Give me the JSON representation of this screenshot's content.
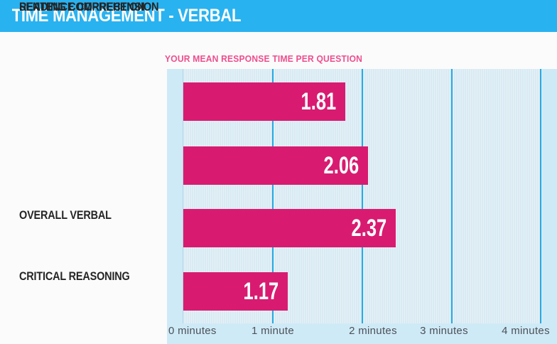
{
  "header": {
    "title": "TIME MANAGEMENT - VERBAL"
  },
  "chart_data": {
    "type": "bar",
    "orientation": "horizontal",
    "title": "YOUR MEAN RESPONSE TIME PER QUESTION",
    "categories": [
      "OVERALL VERBAL",
      "CRITICAL REASONING",
      "READING COMPREHENSION",
      "SENTENCE CORRECTION"
    ],
    "values": [
      1.81,
      2.06,
      2.37,
      1.17
    ],
    "value_unit": "minutes",
    "xlim": [
      0,
      4
    ],
    "tick_labels": [
      "0 minutes",
      "1 minute",
      "2 minutes",
      "3 minutes",
      "4 minutes"
    ],
    "grid": "vertical-lines-at-each-minute",
    "legend": "none",
    "colors": {
      "header_bar": "#29b2f0",
      "bar_fill": "#d81b70",
      "bar_value_text": "#ffffff",
      "subtitle_text": "#ee4e8e",
      "plot_background": "#cfeaf7",
      "gridline": "#29a9e1",
      "category_text": "#252525",
      "tick_text": "#4b5157"
    }
  }
}
